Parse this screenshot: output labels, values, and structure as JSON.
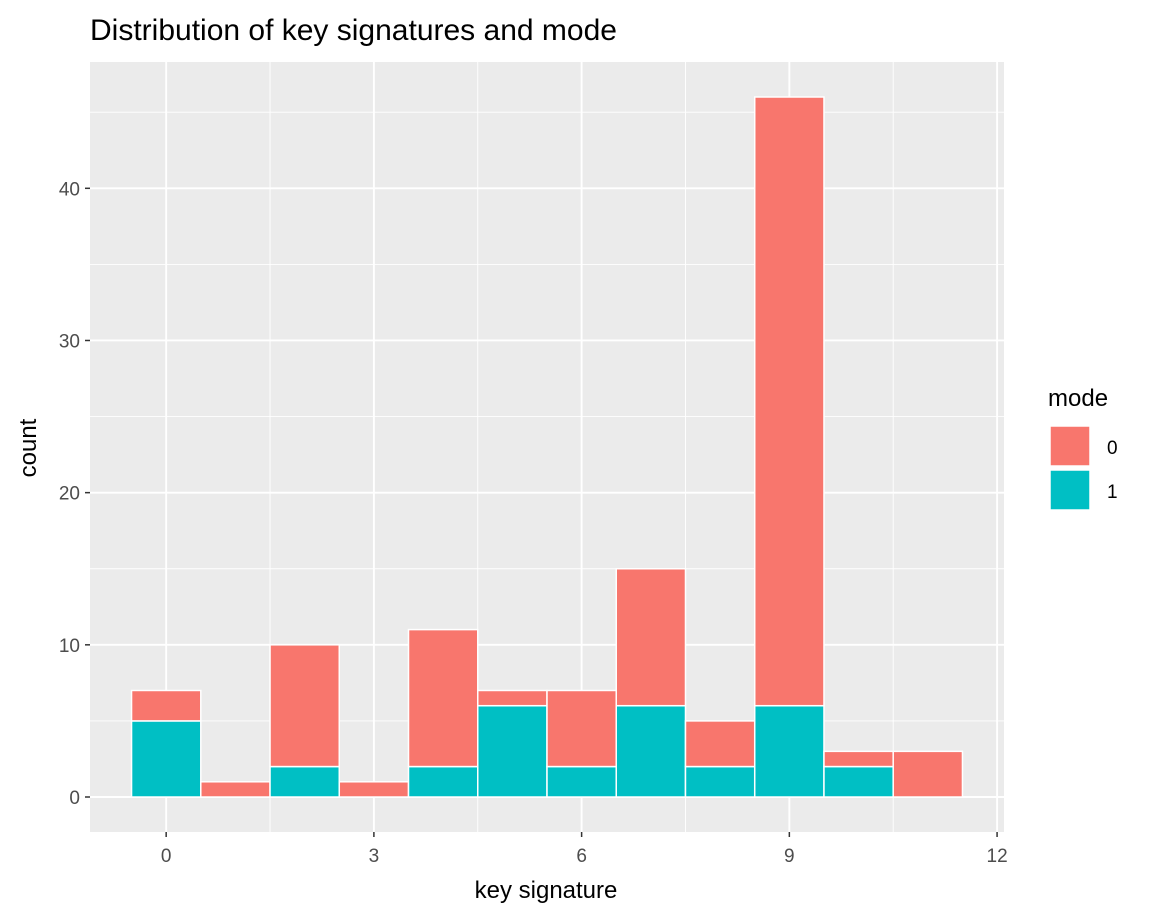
{
  "chart_data": {
    "type": "bar",
    "stacked": true,
    "title": "Distribution of key signatures and mode",
    "xlabel": "key signature",
    "ylabel": "count",
    "xlim": [
      -0.5,
      11.5
    ],
    "ylim": [
      0,
      46
    ],
    "x_ticks": [
      "0",
      "3",
      "6",
      "9",
      "12"
    ],
    "y_ticks": [
      "0",
      "10",
      "20",
      "30",
      "40"
    ],
    "x": [
      0,
      1,
      2,
      3,
      4,
      5,
      6,
      7,
      8,
      9,
      10,
      11
    ],
    "series": [
      {
        "name": "0",
        "color": "#F8766D",
        "values": [
          2,
          1,
          8,
          1,
          9,
          1,
          5,
          9,
          3,
          40,
          1,
          3
        ]
      },
      {
        "name": "1",
        "color": "#00BFC4",
        "values": [
          5,
          0,
          2,
          0,
          2,
          6,
          2,
          6,
          2,
          6,
          2,
          0
        ]
      }
    ],
    "legend": {
      "title": "mode",
      "position": "right"
    },
    "grid": true,
    "panel_background": "#EBEBEB"
  }
}
